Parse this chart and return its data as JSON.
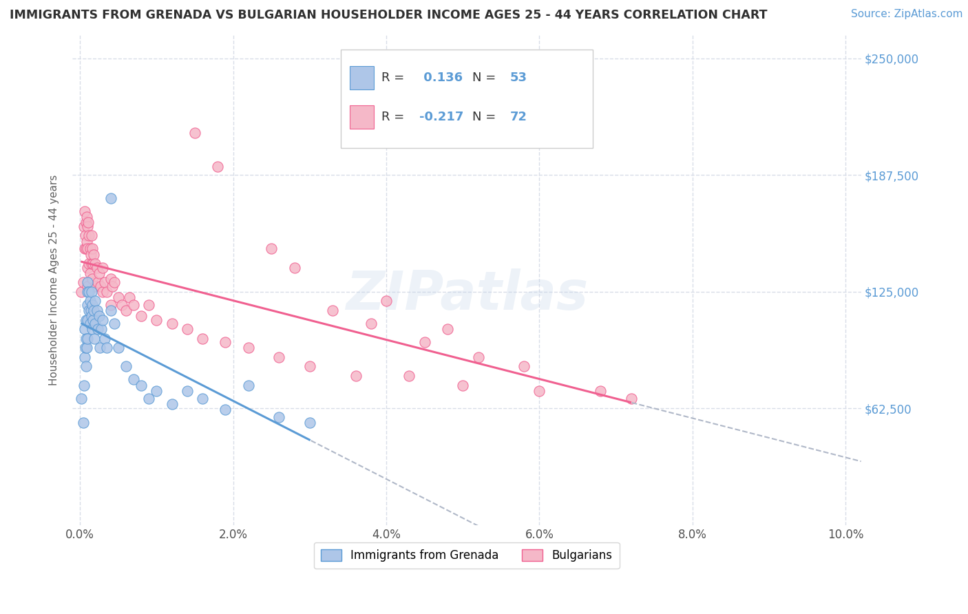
{
  "title": "IMMIGRANTS FROM GRENADA VS BULGARIAN HOUSEHOLDER INCOME AGES 25 - 44 YEARS CORRELATION CHART",
  "source": "Source: ZipAtlas.com",
  "ylabel": "Householder Income Ages 25 - 44 years",
  "xlim": [
    -0.001,
    0.102
  ],
  "ylim": [
    0,
    262500
  ],
  "yticks": [
    62500,
    125000,
    187500,
    250000
  ],
  "ytick_labels": [
    "$62,500",
    "$125,000",
    "$187,500",
    "$250,000"
  ],
  "xtick_labels": [
    "0.0%",
    "2.0%",
    "4.0%",
    "6.0%",
    "8.0%",
    "10.0%"
  ],
  "xticks": [
    0.0,
    0.02,
    0.04,
    0.06,
    0.08,
    0.1
  ],
  "grenada_R": 0.136,
  "grenada_N": 53,
  "bulgarian_R": -0.217,
  "bulgarian_N": 72,
  "grenada_color": "#aec6e8",
  "bulgarian_color": "#f5b8c8",
  "grenada_edge_color": "#5b9bd5",
  "bulgarian_edge_color": "#f06090",
  "grenada_line_color": "#5b9bd5",
  "bulgarian_line_color": "#f06090",
  "dash_line_color": "#b0b8c8",
  "background_color": "#ffffff",
  "grid_color": "#d8dde8",
  "title_color": "#303030",
  "source_color": "#5b9bd5",
  "legend_R_color": "#5b9bd5",
  "legend_N_color": "#5b9bd5",
  "ytick_color": "#5b9bd5",
  "watermark": "ZIPatlas",
  "grenada_x": [
    0.0002,
    0.0004,
    0.0005,
    0.0006,
    0.0006,
    0.0007,
    0.0008,
    0.0008,
    0.0008,
    0.0009,
    0.001,
    0.001,
    0.001,
    0.001,
    0.001,
    0.0012,
    0.0012,
    0.0013,
    0.0013,
    0.0014,
    0.0015,
    0.0015,
    0.0016,
    0.0016,
    0.0017,
    0.0018,
    0.0019,
    0.002,
    0.002,
    0.0022,
    0.0023,
    0.0025,
    0.0026,
    0.0028,
    0.003,
    0.0032,
    0.0035,
    0.004,
    0.004,
    0.0045,
    0.005,
    0.006,
    0.007,
    0.008,
    0.009,
    0.01,
    0.012,
    0.014,
    0.016,
    0.019,
    0.022,
    0.026,
    0.03
  ],
  "grenada_y": [
    68000,
    55000,
    75000,
    105000,
    90000,
    95000,
    110000,
    100000,
    85000,
    95000,
    130000,
    125000,
    118000,
    110000,
    100000,
    125000,
    115000,
    120000,
    108000,
    115000,
    125000,
    112000,
    118000,
    105000,
    110000,
    115000,
    100000,
    120000,
    108000,
    115000,
    105000,
    112000,
    95000,
    105000,
    110000,
    100000,
    95000,
    175000,
    115000,
    108000,
    95000,
    85000,
    78000,
    75000,
    68000,
    72000,
    65000,
    72000,
    68000,
    62000,
    75000,
    58000,
    55000
  ],
  "bulgarian_x": [
    0.0002,
    0.0004,
    0.0005,
    0.0006,
    0.0006,
    0.0007,
    0.0008,
    0.0008,
    0.0009,
    0.0009,
    0.001,
    0.001,
    0.001,
    0.001,
    0.0011,
    0.0012,
    0.0012,
    0.0013,
    0.0013,
    0.0014,
    0.0015,
    0.0015,
    0.0016,
    0.0016,
    0.0017,
    0.0018,
    0.002,
    0.002,
    0.0022,
    0.0023,
    0.0025,
    0.0027,
    0.003,
    0.003,
    0.0032,
    0.0035,
    0.004,
    0.004,
    0.0042,
    0.0045,
    0.005,
    0.0055,
    0.006,
    0.0065,
    0.007,
    0.008,
    0.009,
    0.01,
    0.012,
    0.014,
    0.016,
    0.019,
    0.022,
    0.026,
    0.03,
    0.036,
    0.043,
    0.05,
    0.06,
    0.072,
    0.04,
    0.048,
    0.015,
    0.018,
    0.025,
    0.028,
    0.033,
    0.038,
    0.045,
    0.052,
    0.058,
    0.068
  ],
  "bulgarian_y": [
    125000,
    130000,
    160000,
    168000,
    148000,
    155000,
    162000,
    148000,
    165000,
    152000,
    160000,
    148000,
    138000,
    128000,
    162000,
    155000,
    140000,
    148000,
    135000,
    145000,
    155000,
    140000,
    148000,
    132000,
    140000,
    145000,
    140000,
    128000,
    138000,
    130000,
    135000,
    128000,
    138000,
    125000,
    130000,
    125000,
    132000,
    118000,
    128000,
    130000,
    122000,
    118000,
    115000,
    122000,
    118000,
    112000,
    118000,
    110000,
    108000,
    105000,
    100000,
    98000,
    95000,
    90000,
    85000,
    80000,
    80000,
    75000,
    72000,
    68000,
    120000,
    105000,
    210000,
    192000,
    148000,
    138000,
    115000,
    108000,
    98000,
    90000,
    85000,
    72000
  ]
}
